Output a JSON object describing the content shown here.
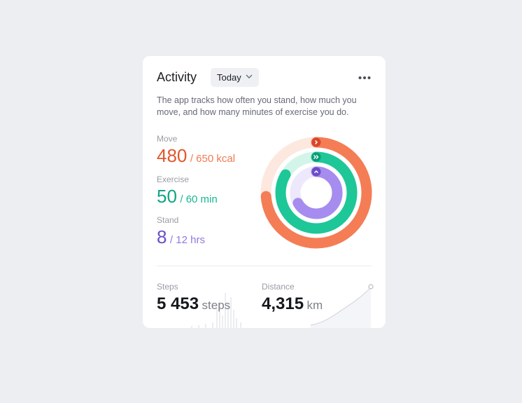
{
  "header": {
    "title": "Activity",
    "period": "Today"
  },
  "description": "The app tracks how often you stand, how much you move, and how many minutes of exercise you do.",
  "metrics": [
    {
      "label": "Move",
      "value": 480,
      "goal": 650,
      "goal_label": "/ 650 kcal"
    },
    {
      "label": "Exercise",
      "value": 50,
      "goal": 60,
      "goal_label": "/ 60 min"
    },
    {
      "label": "Stand",
      "value": 8,
      "goal": 12,
      "goal_label": "/ 12 hrs"
    }
  ],
  "stats": [
    {
      "label": "Steps",
      "value": "5 453",
      "unit": "steps"
    },
    {
      "label": "Distance",
      "value": "4,315",
      "unit": "km"
    }
  ]
}
